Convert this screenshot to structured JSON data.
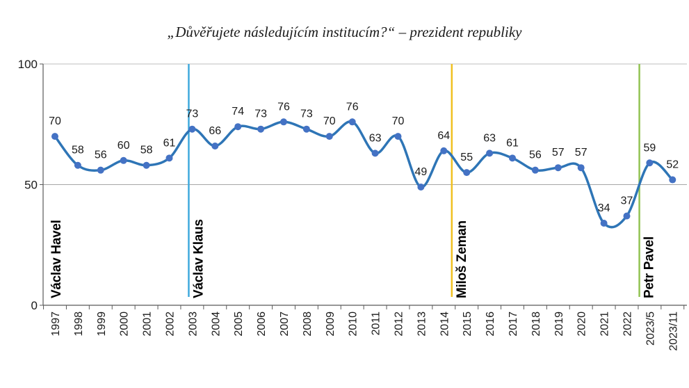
{
  "chart_data": {
    "type": "line",
    "title": "„Důvěřujete následujícím institucím?“ – prezident republiky",
    "categories": [
      "1997",
      "1998",
      "1999",
      "2000",
      "2001",
      "2002",
      "2003",
      "2004",
      "2005",
      "2006",
      "2007",
      "2008",
      "2009",
      "2010",
      "2011",
      "2012",
      "2013",
      "2014",
      "2015",
      "2016",
      "2017",
      "2018",
      "2019",
      "2020",
      "2021",
      "2022",
      "2023/5",
      "2023/11"
    ],
    "series": [
      {
        "values": [
          70,
          58,
          56,
          60,
          58,
          61,
          73,
          66,
          74,
          73,
          76,
          73,
          70,
          76,
          63,
          70,
          49,
          64,
          55,
          63,
          61,
          56,
          57,
          57,
          34,
          37,
          59,
          52
        ]
      }
    ],
    "ylim": [
      0,
      100
    ],
    "yticks": [
      0,
      50,
      100
    ],
    "gridlines": [
      50
    ],
    "line_color": "#2e75b6",
    "presidents": [
      {
        "name": "Václav Havel",
        "at": "1997",
        "marker_color": null
      },
      {
        "name": "Václav Klaus",
        "at": "2002.85",
        "marker_color": "#3fa9dd"
      },
      {
        "name": "Miloš Zeman",
        "at": "2014.35",
        "marker_color": "#f0c020"
      },
      {
        "name": "Petr Pavel",
        "at": "2022.55",
        "marker_color": "#92c353"
      }
    ]
  }
}
